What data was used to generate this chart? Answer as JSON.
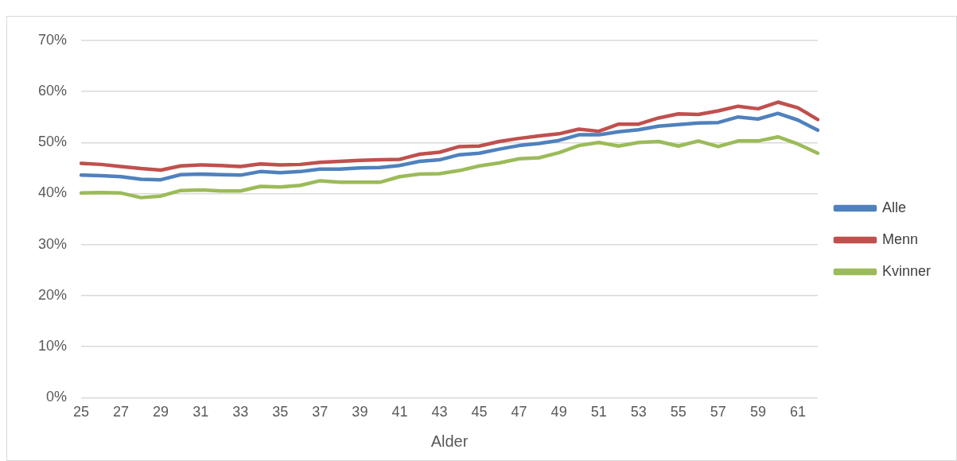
{
  "chart_data": {
    "type": "line",
    "xlabel": "Alder",
    "categories": [
      "25",
      null,
      "27",
      null,
      "29",
      null,
      "31",
      null,
      "33",
      null,
      "35",
      null,
      "37",
      null,
      "39",
      null,
      "41",
      null,
      "43",
      null,
      "45",
      null,
      "47",
      null,
      "49",
      null,
      "51",
      null,
      "53",
      null,
      "55",
      null,
      "57",
      null,
      "59",
      null,
      "61",
      null
    ],
    "series": [
      {
        "name": "Alle",
        "color": "#4f81bd",
        "values": [
          43.6,
          43.5,
          43.3,
          42.8,
          42.7,
          43.7,
          43.8,
          43.7,
          43.6,
          44.3,
          44.1,
          44.3,
          44.8,
          44.8,
          45.0,
          45.1,
          45.5,
          46.3,
          46.6,
          47.6,
          47.9,
          48.7,
          49.4,
          49.8,
          50.4,
          51.5,
          51.5,
          52.1,
          52.5,
          53.2,
          53.5,
          53.8,
          53.9,
          55.0,
          54.6,
          55.7,
          54.4,
          52.4
        ]
      },
      {
        "name": "Menn",
        "color": "#c0504d",
        "values": [
          45.9,
          45.7,
          45.3,
          44.9,
          44.6,
          45.4,
          45.6,
          45.5,
          45.3,
          45.8,
          45.6,
          45.7,
          46.1,
          46.3,
          46.5,
          46.6,
          46.7,
          47.7,
          48.1,
          49.2,
          49.3,
          50.2,
          50.8,
          51.3,
          51.7,
          52.6,
          52.2,
          53.6,
          53.6,
          54.8,
          55.6,
          55.5,
          56.2,
          57.1,
          56.6,
          57.9,
          56.8,
          54.5
        ]
      },
      {
        "name": "Kvinner",
        "color": "#9bbb59",
        "values": [
          40.1,
          40.2,
          40.1,
          39.2,
          39.5,
          40.6,
          40.7,
          40.5,
          40.5,
          41.4,
          41.3,
          41.6,
          42.5,
          42.2,
          42.2,
          42.2,
          43.3,
          43.8,
          43.9,
          44.5,
          45.4,
          46.0,
          46.8,
          47.0,
          48.0,
          49.4,
          50.0,
          49.3,
          50.0,
          50.2,
          49.3,
          50.3,
          49.2,
          50.3,
          50.3,
          51.1,
          49.7,
          47.9
        ]
      }
    ],
    "ylim": [
      0,
      70
    ],
    "yticks": [
      {
        "value": 0,
        "label": "0%"
      },
      {
        "value": 10,
        "label": "10%"
      },
      {
        "value": 20,
        "label": "20%"
      },
      {
        "value": 30,
        "label": "30%"
      },
      {
        "value": 40,
        "label": "40%"
      },
      {
        "value": 50,
        "label": "50%"
      },
      {
        "value": 60,
        "label": "60%"
      },
      {
        "value": 70,
        "label": "70%"
      }
    ],
    "grid": "y",
    "legend": "right",
    "marker": "none",
    "line_style": "solid"
  }
}
